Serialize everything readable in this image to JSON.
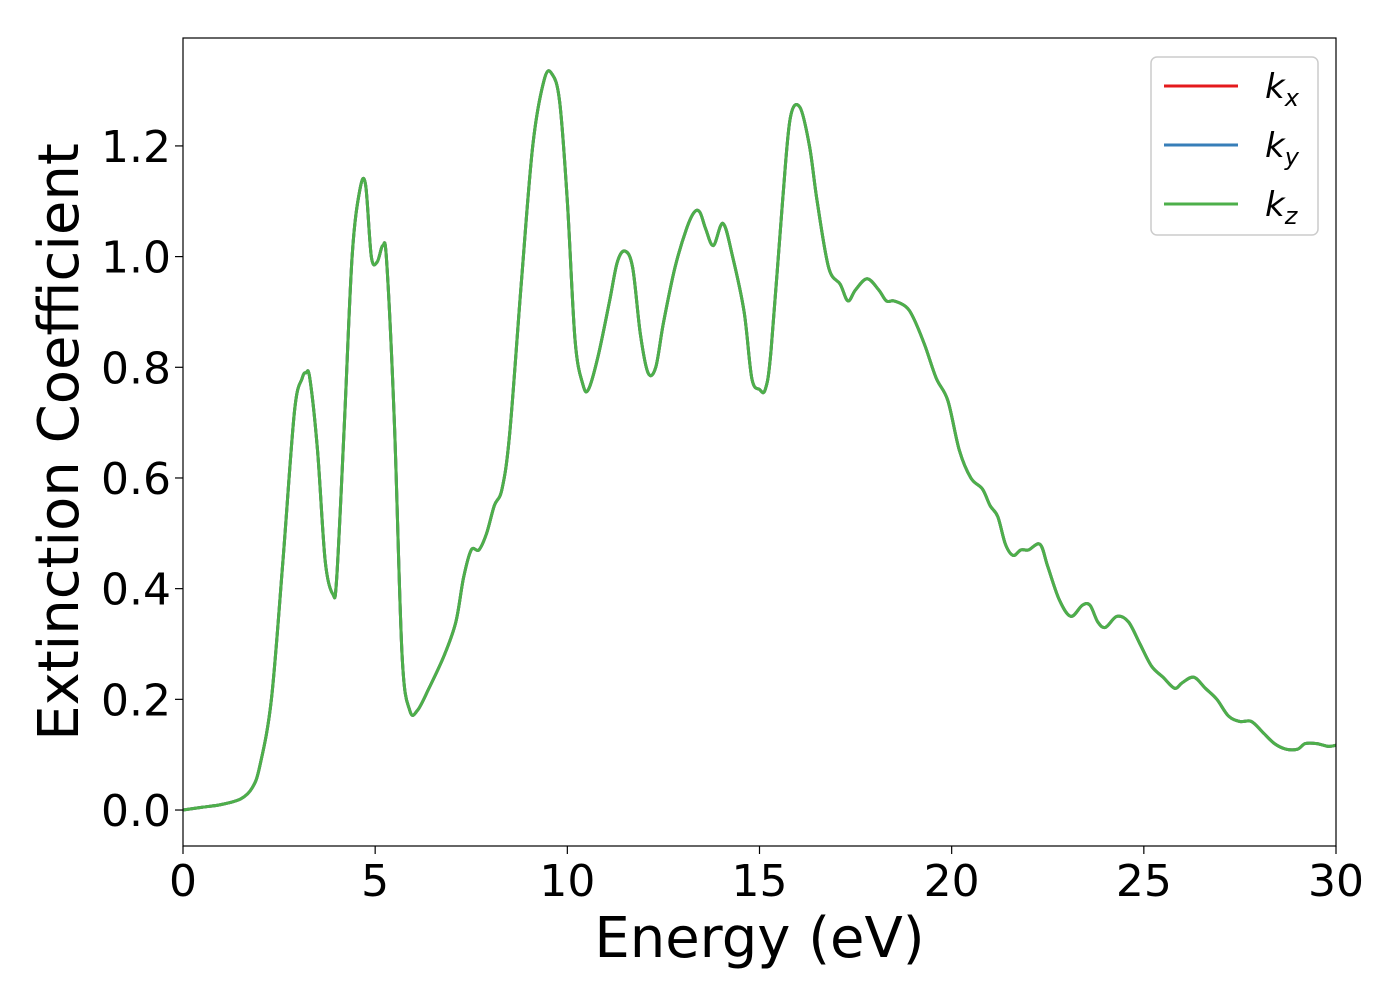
{
  "chart_data": {
    "type": "line",
    "title": "",
    "xlabel": "Energy (eV)",
    "ylabel": "Extinction Coefficient",
    "xlim": [
      0,
      30
    ],
    "ylim": [
      -0.065,
      1.395
    ],
    "xticks": [
      0,
      5,
      10,
      15,
      20,
      25,
      30
    ],
    "xtick_labels": [
      "0",
      "5",
      "10",
      "15",
      "20",
      "25",
      "30"
    ],
    "yticks": [
      0.0,
      0.2,
      0.4,
      0.6,
      0.8,
      1.0,
      1.2
    ],
    "ytick_labels": [
      "0.0",
      "0.2",
      "0.4",
      "0.6",
      "0.8",
      "1.0",
      "1.2"
    ],
    "grid": false,
    "legend_position": "top-right",
    "x": [
      0.0,
      0.5,
      1.0,
      1.5,
      1.8,
      2.0,
      2.3,
      2.6,
      2.9,
      3.1,
      3.2,
      3.3,
      3.5,
      3.7,
      3.9,
      4.0,
      4.2,
      4.4,
      4.6,
      4.75,
      4.9,
      5.05,
      5.2,
      5.3,
      5.5,
      5.7,
      5.9,
      6.1,
      6.4,
      6.8,
      7.1,
      7.3,
      7.5,
      7.7,
      7.9,
      8.1,
      8.3,
      8.5,
      8.8,
      9.1,
      9.4,
      9.6,
      9.8,
      10.0,
      10.2,
      10.4,
      10.55,
      10.8,
      11.1,
      11.3,
      11.5,
      11.7,
      11.9,
      12.1,
      12.3,
      12.5,
      12.8,
      13.1,
      13.3,
      13.45,
      13.6,
      13.8,
      14.05,
      14.3,
      14.6,
      14.8,
      15.0,
      15.15,
      15.3,
      15.6,
      15.8,
      16.05,
      16.3,
      16.5,
      16.8,
      17.1,
      17.3,
      17.5,
      17.8,
      18.1,
      18.3,
      18.5,
      18.8,
      19.0,
      19.3,
      19.6,
      19.9,
      20.2,
      20.5,
      20.8,
      21.0,
      21.2,
      21.4,
      21.6,
      21.8,
      22.0,
      22.3,
      22.5,
      22.8,
      23.1,
      23.4,
      23.6,
      23.8,
      24.0,
      24.3,
      24.6,
      24.9,
      25.2,
      25.5,
      25.8,
      26.0,
      26.3,
      26.6,
      26.9,
      27.2,
      27.5,
      27.8,
      28.1,
      28.4,
      28.7,
      29.0,
      29.2,
      29.5,
      29.8,
      30.0
    ],
    "series": [
      {
        "name": "k_x",
        "label_main": "k",
        "label_sub": "x",
        "color": "#e41a1c",
        "values": [
          0.0,
          0.005,
          0.01,
          0.02,
          0.04,
          0.08,
          0.2,
          0.45,
          0.72,
          0.78,
          0.79,
          0.78,
          0.65,
          0.45,
          0.39,
          0.42,
          0.7,
          1.0,
          1.12,
          1.13,
          1.0,
          0.99,
          1.02,
          0.99,
          0.7,
          0.28,
          0.18,
          0.18,
          0.22,
          0.28,
          0.34,
          0.42,
          0.47,
          0.47,
          0.5,
          0.55,
          0.58,
          0.68,
          0.95,
          1.2,
          1.32,
          1.33,
          1.28,
          1.1,
          0.85,
          0.77,
          0.76,
          0.82,
          0.92,
          0.99,
          1.01,
          0.98,
          0.86,
          0.79,
          0.8,
          0.88,
          0.98,
          1.05,
          1.08,
          1.08,
          1.05,
          1.02,
          1.06,
          1.0,
          0.9,
          0.78,
          0.76,
          0.76,
          0.83,
          1.1,
          1.25,
          1.27,
          1.2,
          1.1,
          0.98,
          0.95,
          0.92,
          0.94,
          0.96,
          0.94,
          0.92,
          0.92,
          0.91,
          0.89,
          0.84,
          0.78,
          0.74,
          0.65,
          0.6,
          0.58,
          0.55,
          0.53,
          0.48,
          0.46,
          0.47,
          0.47,
          0.48,
          0.44,
          0.38,
          0.35,
          0.37,
          0.37,
          0.34,
          0.33,
          0.35,
          0.34,
          0.3,
          0.26,
          0.24,
          0.22,
          0.23,
          0.24,
          0.22,
          0.2,
          0.17,
          0.16,
          0.16,
          0.14,
          0.12,
          0.11,
          0.11,
          0.12,
          0.12,
          0.115,
          0.117
        ]
      },
      {
        "name": "k_y",
        "label_main": "k",
        "label_sub": "y",
        "color": "#377eb8",
        "values": [
          0.0,
          0.005,
          0.01,
          0.02,
          0.04,
          0.08,
          0.2,
          0.45,
          0.72,
          0.78,
          0.79,
          0.78,
          0.65,
          0.45,
          0.39,
          0.42,
          0.7,
          1.0,
          1.12,
          1.13,
          1.0,
          0.99,
          1.02,
          0.99,
          0.7,
          0.28,
          0.18,
          0.18,
          0.22,
          0.28,
          0.34,
          0.42,
          0.47,
          0.47,
          0.5,
          0.55,
          0.58,
          0.68,
          0.95,
          1.2,
          1.32,
          1.33,
          1.28,
          1.1,
          0.85,
          0.77,
          0.76,
          0.82,
          0.92,
          0.99,
          1.01,
          0.98,
          0.86,
          0.79,
          0.8,
          0.88,
          0.98,
          1.05,
          1.08,
          1.08,
          1.05,
          1.02,
          1.06,
          1.0,
          0.9,
          0.78,
          0.76,
          0.76,
          0.83,
          1.1,
          1.25,
          1.27,
          1.2,
          1.1,
          0.98,
          0.95,
          0.92,
          0.94,
          0.96,
          0.94,
          0.92,
          0.92,
          0.91,
          0.89,
          0.84,
          0.78,
          0.74,
          0.65,
          0.6,
          0.58,
          0.55,
          0.53,
          0.48,
          0.46,
          0.47,
          0.47,
          0.48,
          0.44,
          0.38,
          0.35,
          0.37,
          0.37,
          0.34,
          0.33,
          0.35,
          0.34,
          0.3,
          0.26,
          0.24,
          0.22,
          0.23,
          0.24,
          0.22,
          0.2,
          0.17,
          0.16,
          0.16,
          0.14,
          0.12,
          0.11,
          0.11,
          0.12,
          0.12,
          0.115,
          0.117
        ]
      },
      {
        "name": "k_z",
        "label_main": "k",
        "label_sub": "z",
        "color": "#4daf4a",
        "values": [
          0.0,
          0.005,
          0.01,
          0.02,
          0.04,
          0.08,
          0.2,
          0.45,
          0.72,
          0.78,
          0.79,
          0.78,
          0.65,
          0.45,
          0.39,
          0.42,
          0.7,
          1.0,
          1.12,
          1.13,
          1.0,
          0.99,
          1.02,
          0.99,
          0.7,
          0.28,
          0.18,
          0.18,
          0.22,
          0.28,
          0.34,
          0.42,
          0.47,
          0.47,
          0.5,
          0.55,
          0.58,
          0.68,
          0.95,
          1.2,
          1.32,
          1.33,
          1.28,
          1.1,
          0.85,
          0.77,
          0.76,
          0.82,
          0.92,
          0.99,
          1.01,
          0.98,
          0.86,
          0.79,
          0.8,
          0.88,
          0.98,
          1.05,
          1.08,
          1.08,
          1.05,
          1.02,
          1.06,
          1.0,
          0.9,
          0.78,
          0.76,
          0.76,
          0.83,
          1.1,
          1.25,
          1.27,
          1.2,
          1.1,
          0.98,
          0.95,
          0.92,
          0.94,
          0.96,
          0.94,
          0.92,
          0.92,
          0.91,
          0.89,
          0.84,
          0.78,
          0.74,
          0.65,
          0.6,
          0.58,
          0.55,
          0.53,
          0.48,
          0.46,
          0.47,
          0.47,
          0.48,
          0.44,
          0.38,
          0.35,
          0.37,
          0.37,
          0.34,
          0.33,
          0.35,
          0.34,
          0.3,
          0.26,
          0.24,
          0.22,
          0.23,
          0.24,
          0.22,
          0.2,
          0.17,
          0.16,
          0.16,
          0.14,
          0.12,
          0.11,
          0.11,
          0.12,
          0.12,
          0.115,
          0.117
        ]
      }
    ]
  }
}
